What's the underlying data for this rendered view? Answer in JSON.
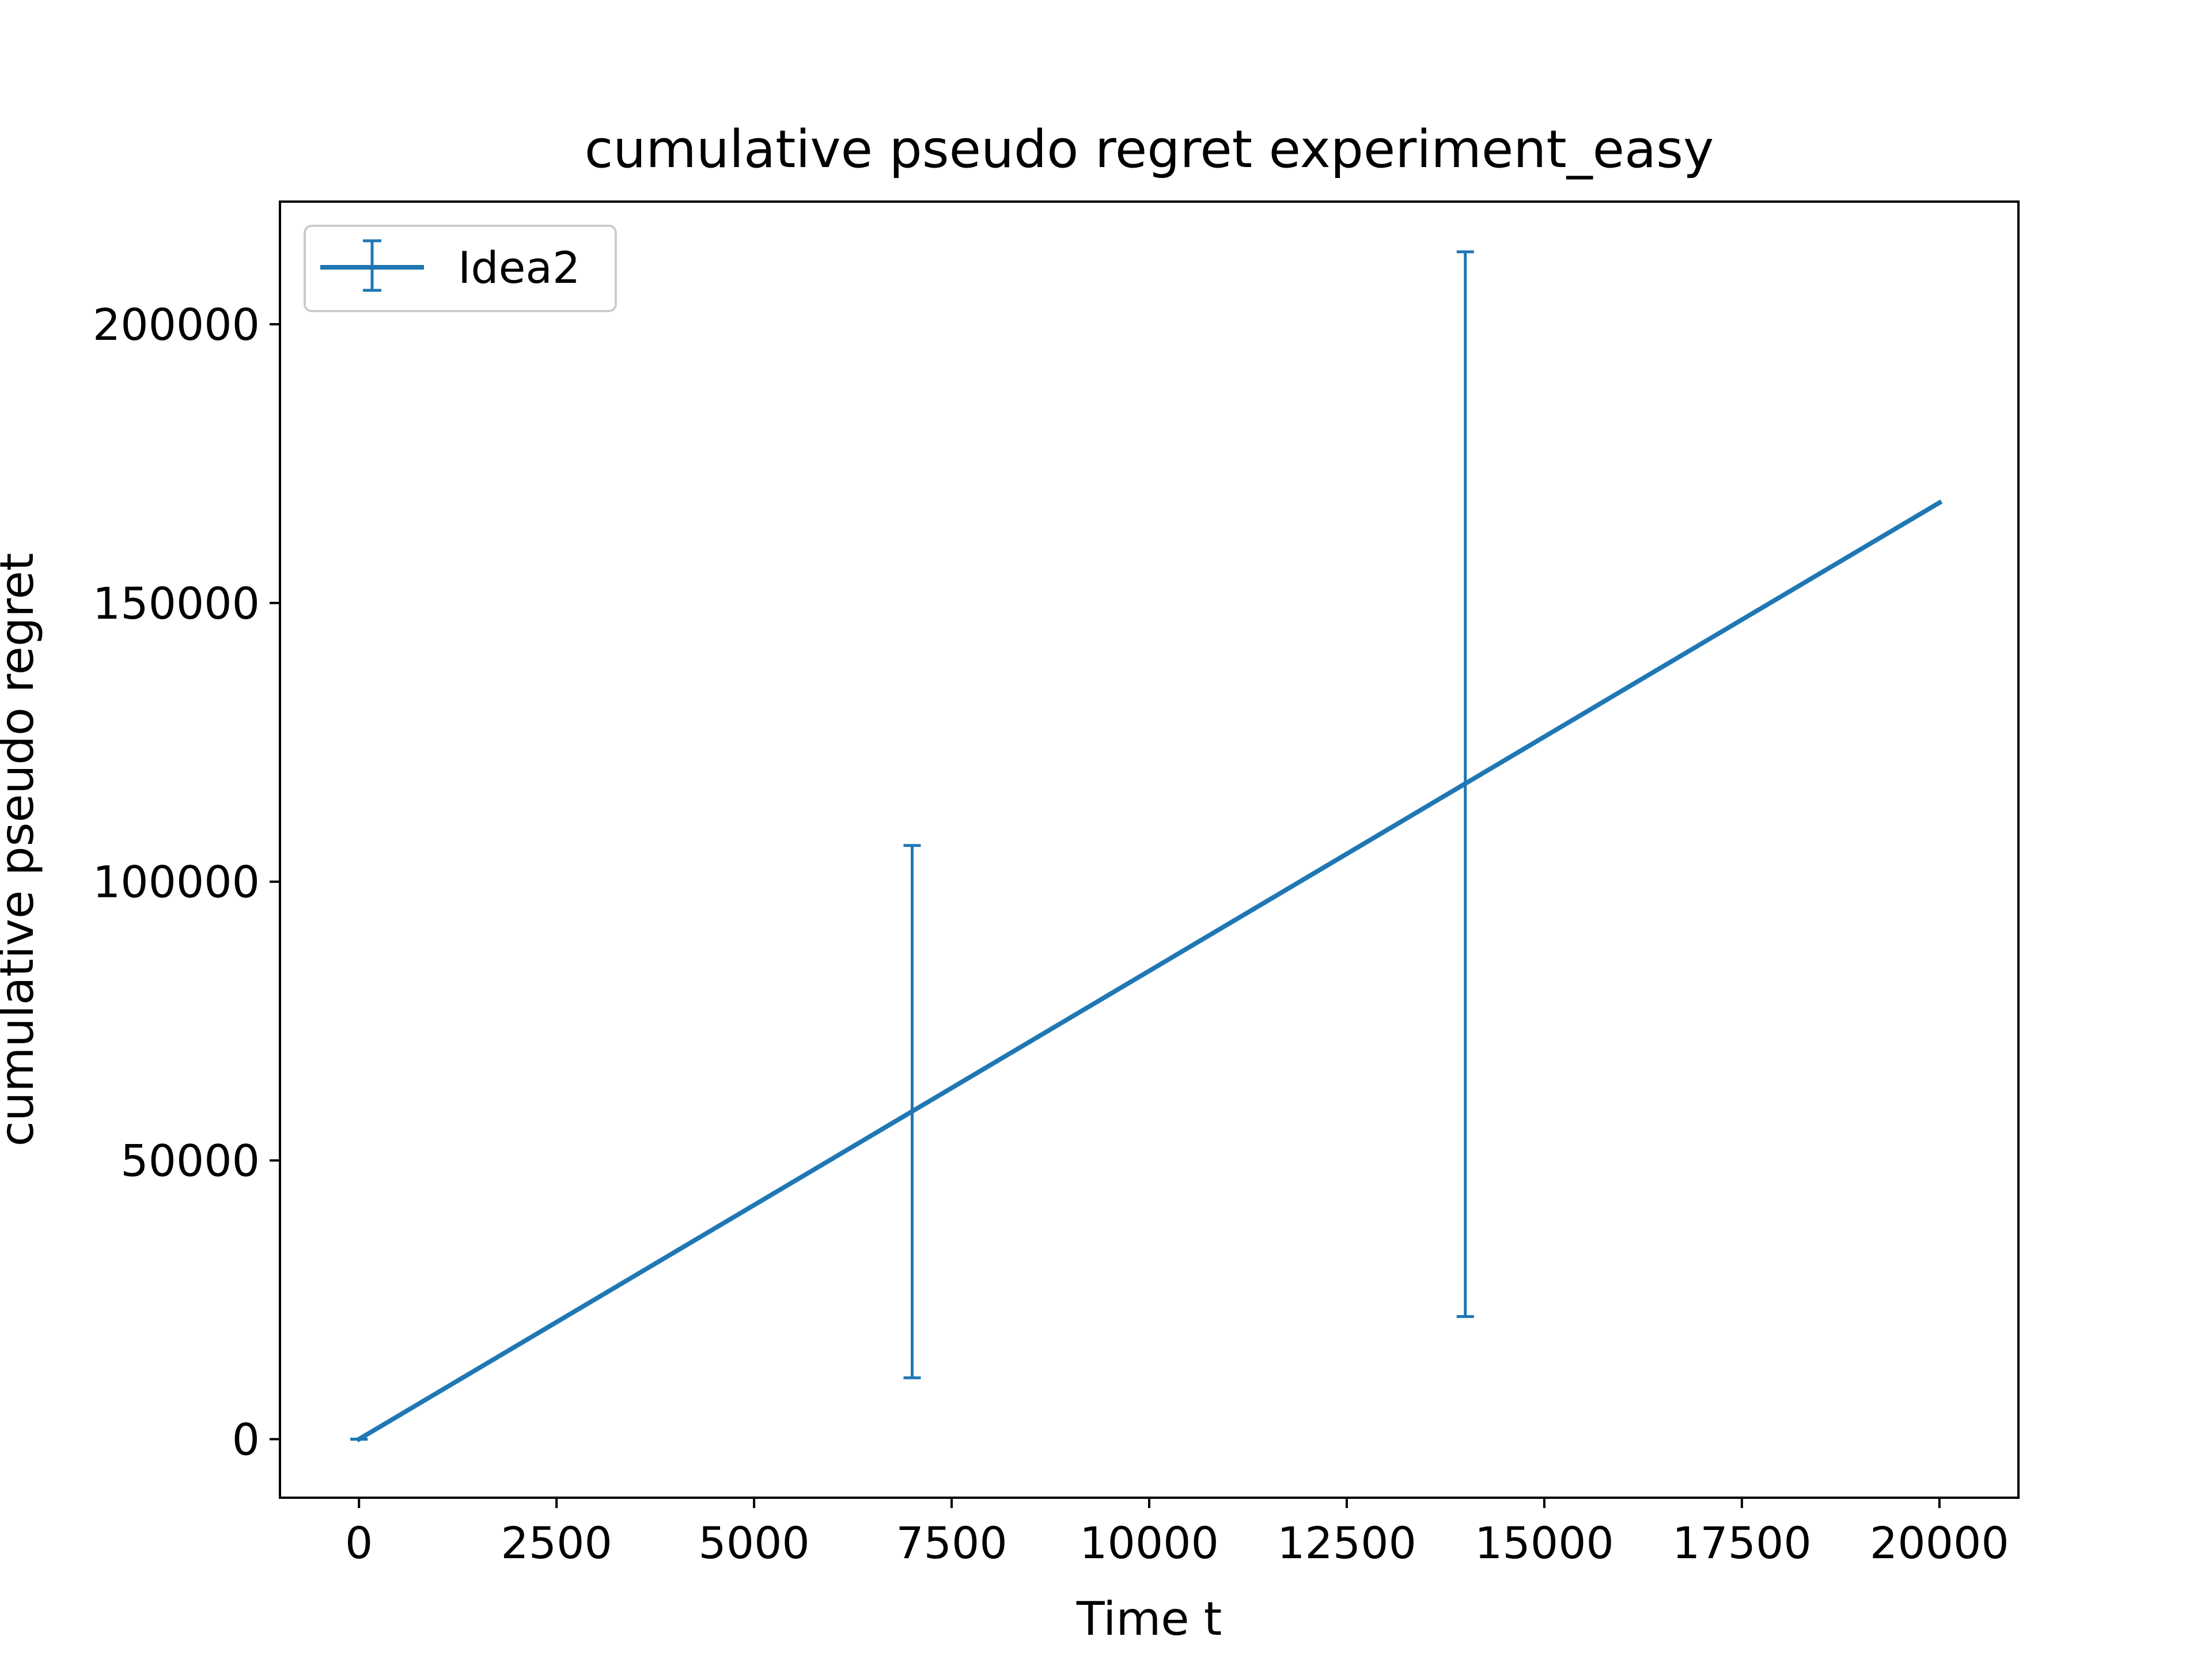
{
  "chart_data": {
    "type": "line",
    "title": "cumulative pseudo regret experiment_easy",
    "xlabel": "Time t",
    "ylabel": "cumulative pseudo regret",
    "xlim": [
      -1000,
      21000
    ],
    "ylim": [
      -10500,
      222000
    ],
    "xticks": [
      0,
      2500,
      5000,
      7500,
      10000,
      12500,
      15000,
      17500,
      20000
    ],
    "xtick_labels": [
      "0",
      "2500",
      "5000",
      "7500",
      "10000",
      "12500",
      "15000",
      "17500",
      "20000"
    ],
    "yticks": [
      0,
      50000,
      100000,
      150000,
      200000
    ],
    "ytick_labels": [
      "0",
      "50000",
      "100000",
      "150000",
      "200000"
    ],
    "grid": false,
    "legend_position": "upper left",
    "series": [
      {
        "name": "Idea2",
        "color": "#1f77b4",
        "x": [
          0,
          20000
        ],
        "y": [
          0,
          168000
        ],
        "errorbars": [
          {
            "x": 0,
            "y": 0,
            "lower": 0,
            "upper": 0
          },
          {
            "x": 7000,
            "y": 58800,
            "lower": 11000,
            "upper": 106500
          },
          {
            "x": 14000,
            "y": 117600,
            "lower": 22000,
            "upper": 213000
          }
        ]
      }
    ]
  }
}
